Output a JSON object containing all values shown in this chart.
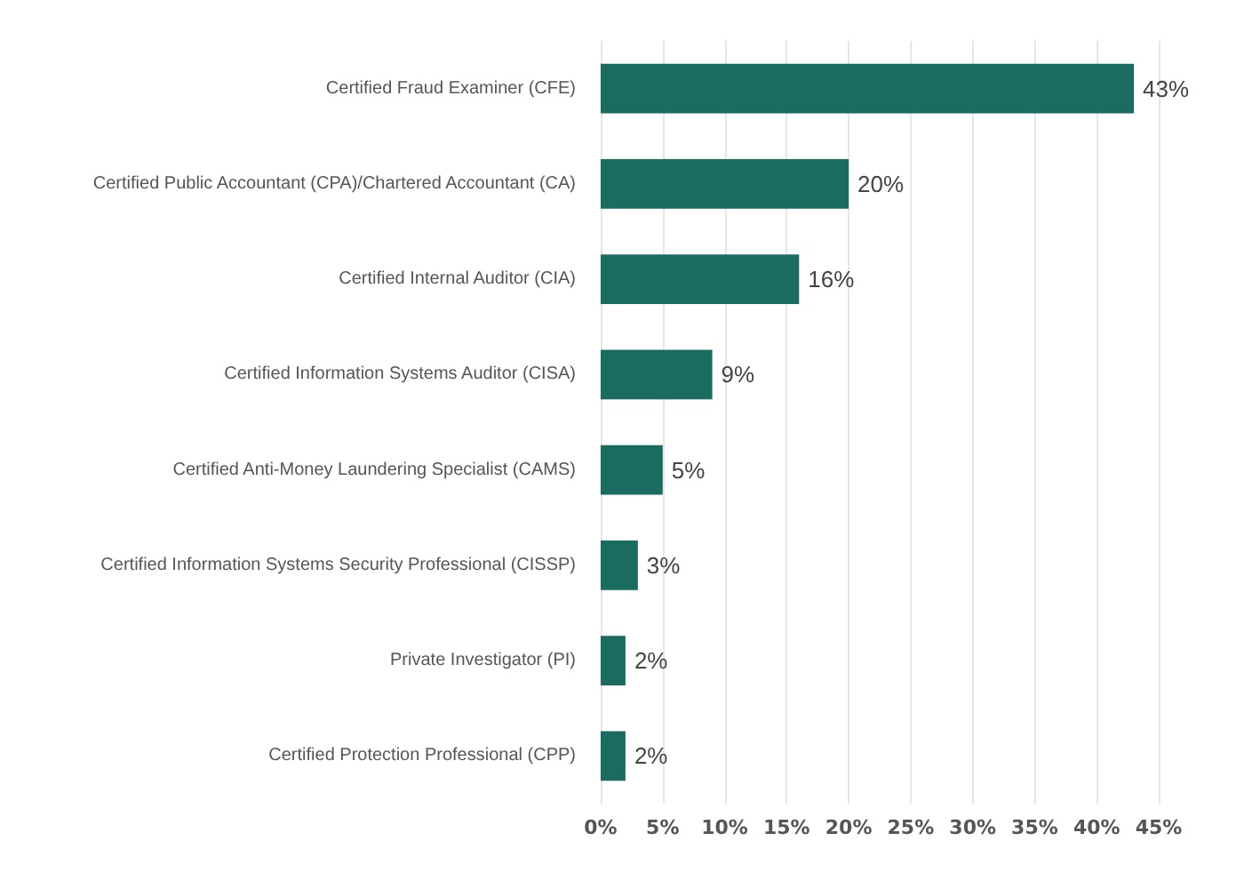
{
  "chart_data": {
    "type": "bar",
    "orientation": "horizontal",
    "categories": [
      "Certified Fraud Examiner (CFE)",
      "Certified Public Accountant (CPA)/Chartered Accountant (CA)",
      "Certified Internal Auditor (CIA)",
      "Certified Information Systems Auditor (CISA)",
      "Certified Anti-Money Laundering Specialist (CAMS)",
      "Certified Information Systems Security Professional (CISSP)",
      "Private Investigator (PI)",
      "Certified Protection Professional (CPP)"
    ],
    "values": [
      43,
      20,
      16,
      9,
      5,
      3,
      2,
      2
    ],
    "value_labels": [
      "43%",
      "20%",
      "16%",
      "9%",
      "5%",
      "3%",
      "2%",
      "2%"
    ],
    "color": "#1a6b60",
    "xlim": [
      0,
      45
    ],
    "xticks": [
      {
        "value": 0,
        "label": "0%"
      },
      {
        "value": 5,
        "label": "5%"
      },
      {
        "value": 10,
        "label": "10%"
      },
      {
        "value": 15,
        "label": "15%"
      },
      {
        "value": 20,
        "label": "20%"
      },
      {
        "value": 25,
        "label": "25%"
      },
      {
        "value": 30,
        "label": "30%"
      },
      {
        "value": 35,
        "label": "35%"
      },
      {
        "value": 40,
        "label": "40%"
      },
      {
        "value": 45,
        "label": "45%"
      }
    ],
    "grid": "x"
  }
}
